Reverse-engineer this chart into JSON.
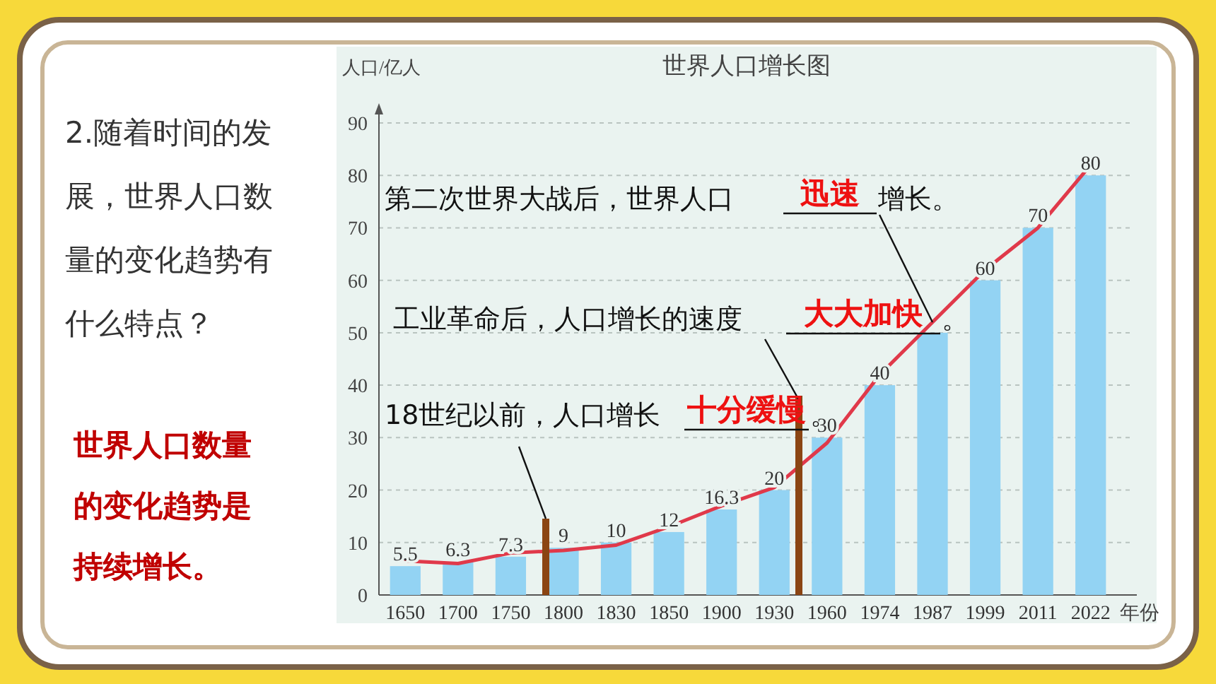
{
  "chart_data": {
    "type": "bar",
    "title": "世界人口增长图",
    "ylabel": "人口/亿人",
    "xlabel": "年份",
    "categories": [
      "1650",
      "1700",
      "1750",
      "1800",
      "1830",
      "1850",
      "1900",
      "1930",
      "1960",
      "1974",
      "1987",
      "1999",
      "2011",
      "2022"
    ],
    "series": [
      {
        "color": "#93d3f3",
        "values": [
          5.5,
          6.3,
          7.3,
          9,
          10,
          12,
          16.3,
          20,
          30,
          40,
          50,
          60,
          70,
          80
        ],
        "value_labels": [
          "5.5",
          "6.3",
          "7.3",
          "9",
          "10",
          "12",
          "16.3",
          "20",
          "30",
          "40",
          null,
          "60",
          "70",
          "80"
        ]
      },
      {
        "type": "line",
        "color": "#e0394a",
        "values": [
          6.5,
          6,
          8,
          8.5,
          9.5,
          13,
          17,
          20.5,
          29,
          42,
          52,
          62,
          70,
          82
        ]
      }
    ],
    "ylim": [
      0,
      90
    ],
    "yticks": [
      0,
      10,
      20,
      30,
      40,
      50,
      60,
      70,
      80,
      90
    ],
    "grid": "y",
    "annotations": [
      "2.随着时间的发展，世界人口数量的变化趋势有什么特点？",
      "世界人口数量的变化趋势是持续增长。",
      "第二次世界大战后，世界人口",
      {
        "text": "迅速",
        "x": "1987",
        "y": 52
      },
      "增长。",
      "工业革命后，人口增长的速度",
      "大大加快",
      "。",
      "18世纪以前，人口增长",
      "十分缓慢",
      "。"
    ]
  }
}
